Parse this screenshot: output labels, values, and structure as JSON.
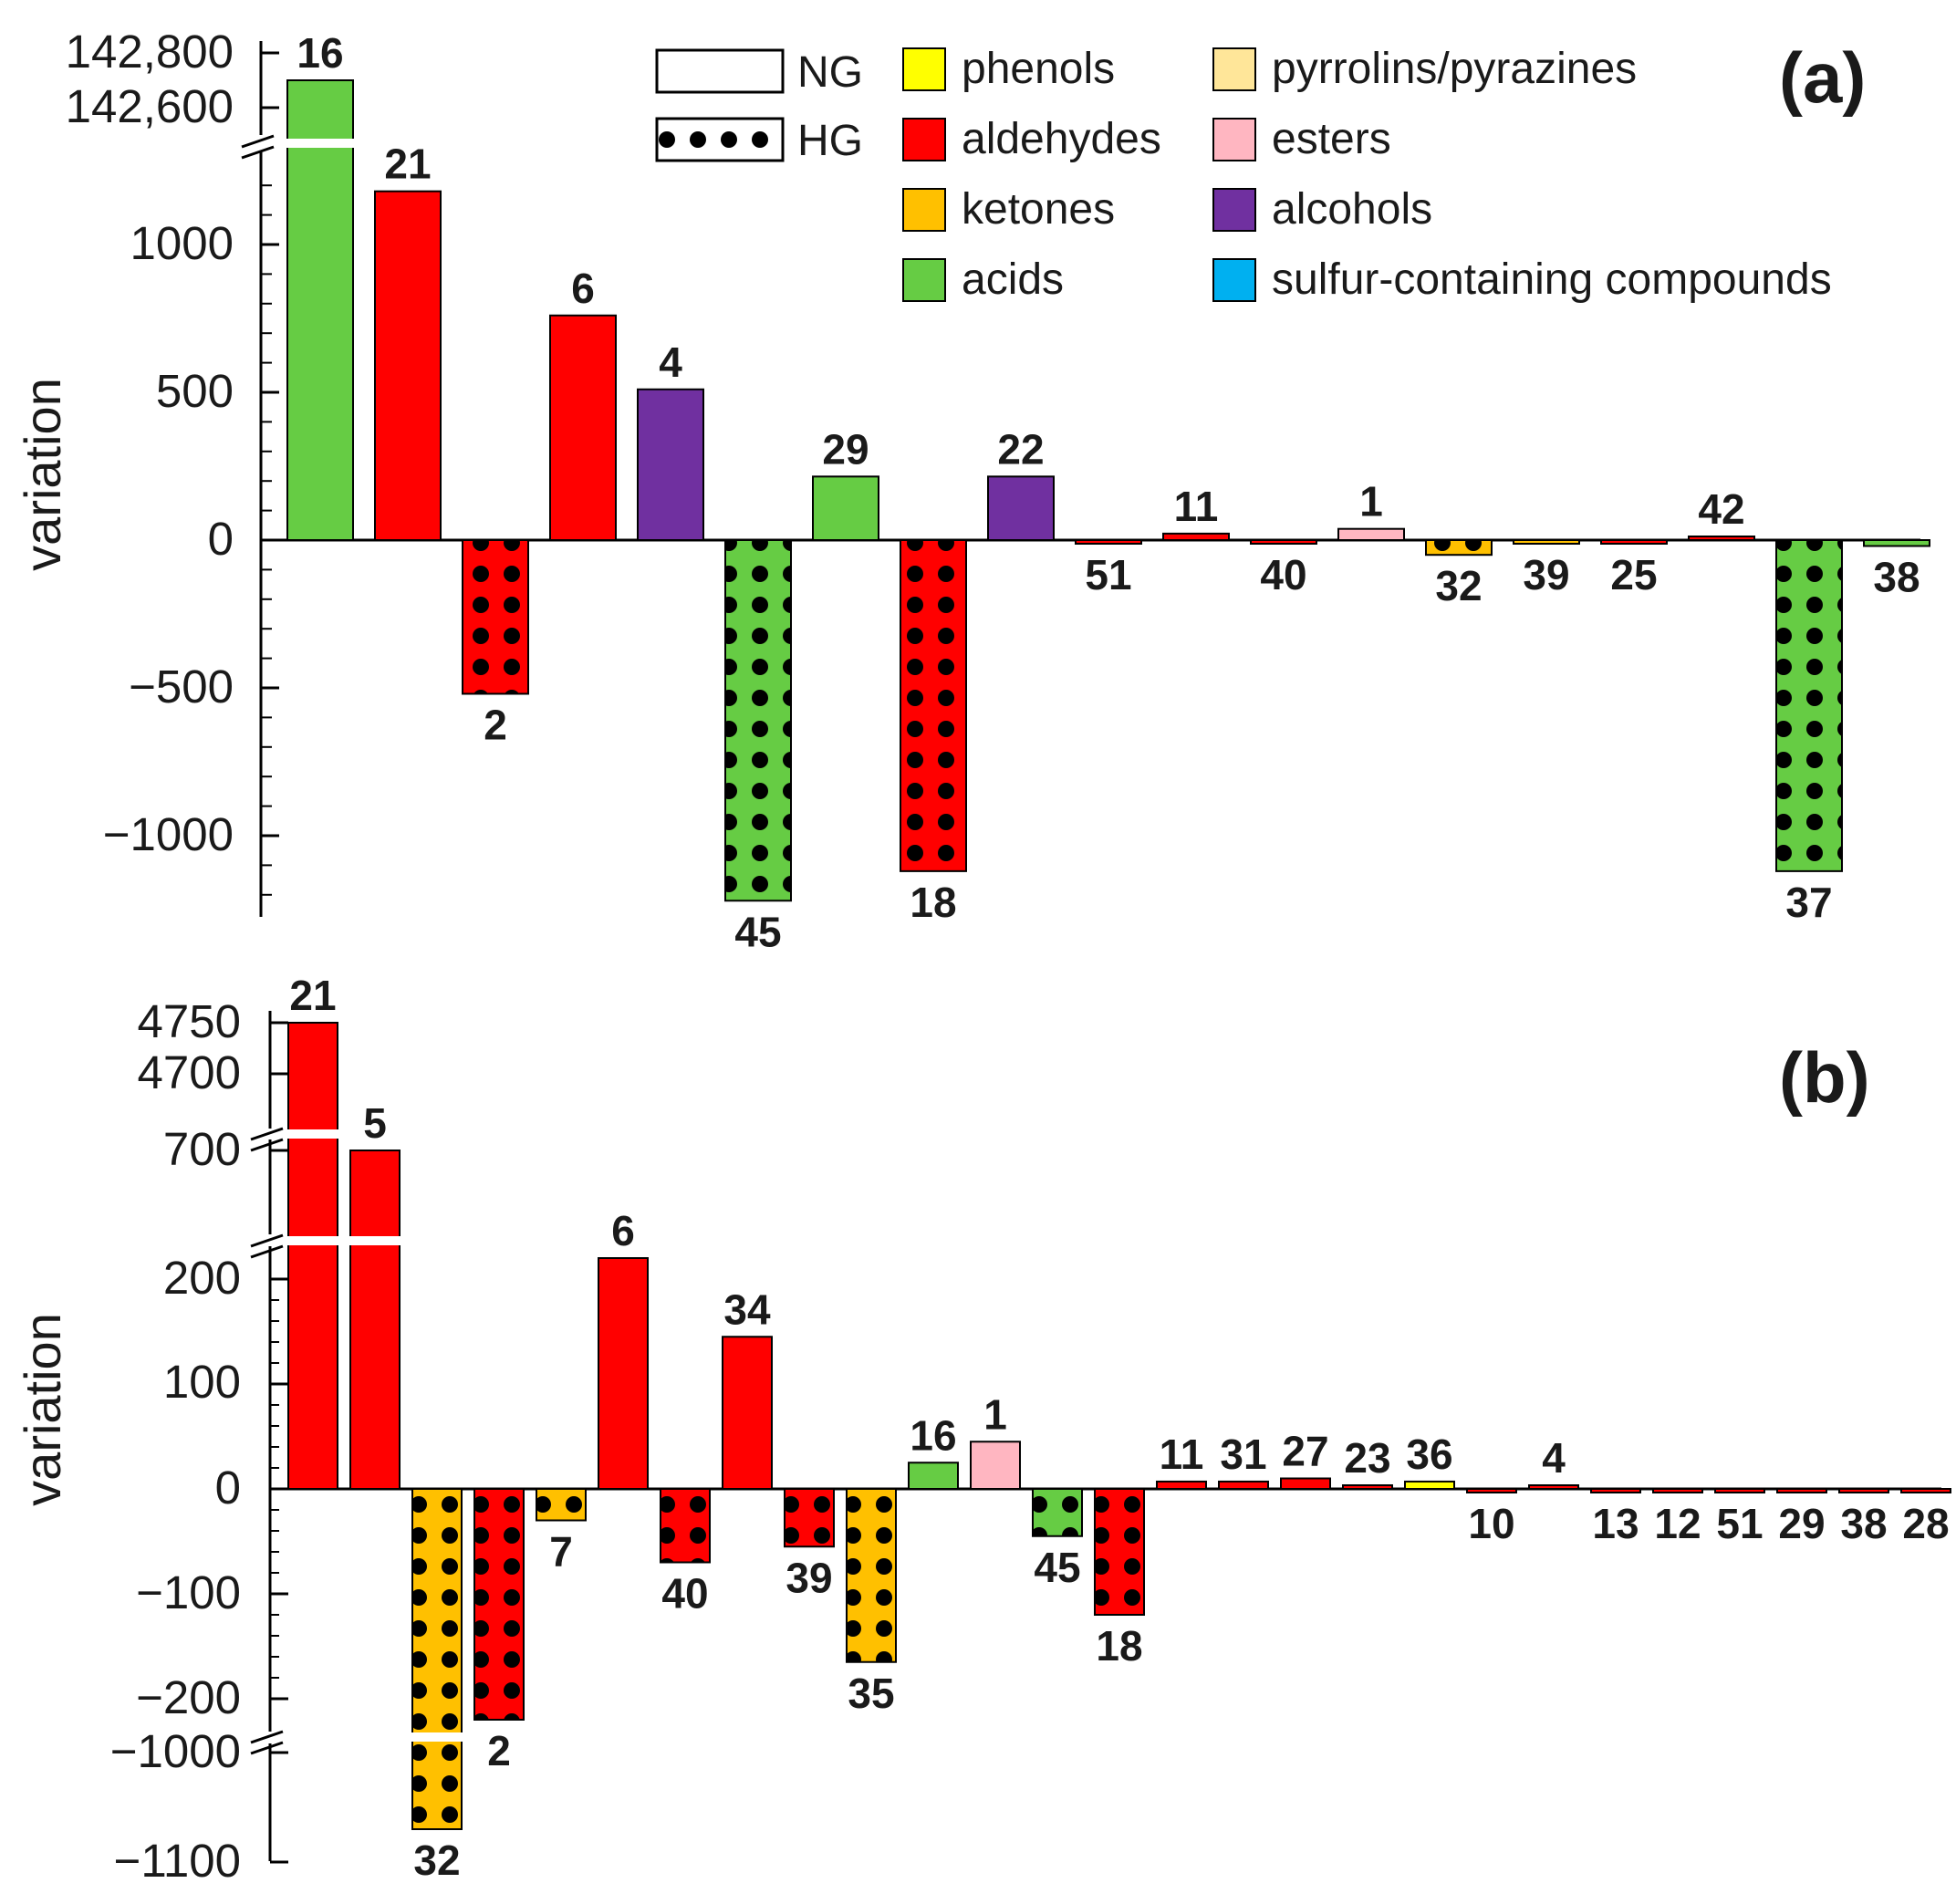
{
  "colors": {
    "phenols": "#ffff00",
    "aldehydes": "#ff0000",
    "ketones": "#ffc000",
    "acids": "#66cc44",
    "pyrrolins": "#ffe699",
    "esters": "#ffb6c1",
    "alcohols": "#7030a0",
    "sulfur": "#00b0f0",
    "outline": "#000000"
  },
  "legend": {
    "groups": [
      {
        "key": "NG",
        "label": "NG",
        "pattern": "plain"
      },
      {
        "key": "HG",
        "label": "HG",
        "pattern": "dots"
      }
    ],
    "classes": [
      {
        "key": "phenols",
        "label": "phenols"
      },
      {
        "key": "aldehydes",
        "label": "aldehydes"
      },
      {
        "key": "ketones",
        "label": "ketones"
      },
      {
        "key": "acids",
        "label": "acids"
      },
      {
        "key": "pyrrolins",
        "label": "pyrrolins/pyrazines"
      },
      {
        "key": "esters",
        "label": "esters"
      },
      {
        "key": "alcohols",
        "label": "alcohols"
      },
      {
        "key": "sulfur",
        "label": "sulfur-containing compounds"
      }
    ]
  },
  "chart_data": [
    {
      "type": "bar",
      "panel": "(a)",
      "ylabel": "variation",
      "categories": [
        "16",
        "21",
        "2",
        "6",
        "4",
        "45",
        "29",
        "18",
        "22",
        "51",
        "11",
        "40",
        "1",
        "32",
        "39",
        "25",
        "42",
        "37",
        "38"
      ],
      "values": [
        142700,
        1180,
        -520,
        760,
        510,
        -1220,
        215,
        -1120,
        215,
        -8,
        22,
        -8,
        38,
        -50,
        -8,
        -8,
        12,
        -1120,
        -20
      ],
      "classes": [
        "acids",
        "aldehydes",
        "aldehydes",
        "aldehydes",
        "alcohols",
        "acids",
        "acids",
        "aldehydes",
        "alcohols",
        "aldehydes",
        "aldehydes",
        "aldehydes",
        "esters",
        "ketones",
        "ketones",
        "aldehydes",
        "aldehydes",
        "acids",
        "acids"
      ],
      "groups": [
        "NG",
        "NG",
        "HG",
        "NG",
        "NG",
        "HG",
        "NG",
        "HG",
        "NG",
        "NG",
        "NG",
        "NG",
        "NG",
        "HG",
        "NG",
        "NG",
        "NG",
        "HG",
        "NG"
      ],
      "label_style": [
        "bold",
        "bold",
        "bold",
        "bold",
        "bold",
        "bold",
        "bold",
        "normal",
        "bold",
        "bold",
        "bold",
        "bold",
        "bold",
        "bold",
        "bold",
        "bold",
        "bold",
        "bold",
        "bold"
      ],
      "yticks_top": [
        "142,800",
        "142,600"
      ],
      "yticks_main": [
        "1000",
        "500",
        "0",
        "−500",
        "−1000"
      ],
      "ylim_main": [
        -1250,
        1250
      ],
      "axis_break": {
        "lower": 1250,
        "upper": 142600
      }
    },
    {
      "type": "bar",
      "panel": "(b)",
      "ylabel": "variation",
      "categories": [
        "21",
        "5",
        "32",
        "2",
        "7",
        "6",
        "40",
        "34",
        "39",
        "35",
        "16",
        "1",
        "45",
        "18",
        "11",
        "31",
        "27",
        "23",
        "36",
        "10",
        "4",
        "13",
        "12",
        "51",
        "29",
        "38",
        "28"
      ],
      "values": [
        4750,
        700,
        -1070,
        -220,
        -30,
        220,
        -70,
        145,
        -55,
        -165,
        25,
        45,
        -45,
        -120,
        7,
        7,
        10,
        3,
        7,
        -3,
        3,
        -2,
        -2,
        -3,
        -3,
        -3,
        -3
      ],
      "classes": [
        "aldehydes",
        "aldehydes",
        "ketones",
        "aldehydes",
        "ketones",
        "aldehydes",
        "aldehydes",
        "aldehydes",
        "aldehydes",
        "ketones",
        "acids",
        "esters",
        "acids",
        "aldehydes",
        "aldehydes",
        "aldehydes",
        "aldehydes",
        "aldehydes",
        "phenols",
        "aldehydes",
        "aldehydes",
        "aldehydes",
        "aldehydes",
        "aldehydes",
        "aldehydes",
        "aldehydes",
        "aldehydes"
      ],
      "groups": [
        "NG",
        "NG",
        "HG",
        "HG",
        "HG",
        "NG",
        "HG",
        "NG",
        "HG",
        "HG",
        "NG",
        "NG",
        "HG",
        "HG",
        "NG",
        "NG",
        "NG",
        "NG",
        "NG",
        "NG",
        "NG",
        "NG",
        "NG",
        "NG",
        "NG",
        "NG",
        "NG"
      ],
      "label_style": [
        "bold",
        "bold",
        "bold",
        "bold",
        "bold",
        "normal",
        "normal",
        "bold",
        "normal",
        "normal",
        "normal",
        "bold",
        "normal",
        "normal",
        "bold",
        "normal",
        "bold",
        "normal",
        "normal",
        "normal",
        "normal",
        "normal",
        "bold",
        "normal",
        "normal",
        "normal",
        "normal"
      ],
      "yticks_top": [
        "4750",
        "4700"
      ],
      "yticks_mid": [
        "700"
      ],
      "yticks_main": [
        "200",
        "100",
        "0",
        "−100",
        "−200"
      ],
      "yticks_bottom": [
        "−1000",
        "−1100"
      ],
      "ylim_main": [
        -230,
        230
      ]
    }
  ]
}
